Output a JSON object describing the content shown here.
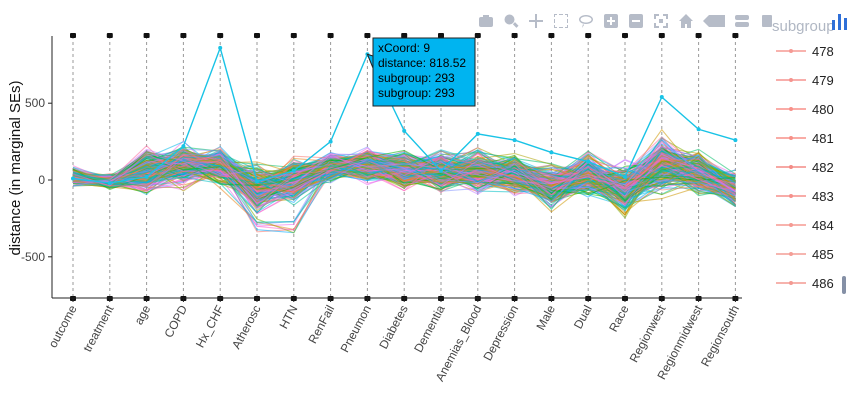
{
  "chart_data": {
    "type": "line",
    "ylabel": "distance (in marginal SEs)",
    "categories": [
      "outcome",
      "treatment",
      "age",
      "COPD",
      "Hx_CHF",
      "Atherosc",
      "HTN",
      "RenFail",
      "Pneumon",
      "Diabetes",
      "Dementia",
      "Anemias_Blood",
      "Depression",
      "Male",
      "Dual",
      "Race",
      "Regionwest",
      "Regionmidwest",
      "Regionsouth"
    ],
    "yticks": [
      -500,
      0,
      500
    ],
    "ylim": [
      -770,
      940
    ],
    "legend_title": "subgroup",
    "legend_entries": [
      "478",
      "479",
      "480",
      "481",
      "482",
      "483",
      "484",
      "485",
      "486"
    ],
    "grid": "vertical dashed at each category",
    "series_note": "hundreds of subgroup lines colored by subgroup",
    "highlighted_series": [
      {
        "name": "293",
        "values": [
          10,
          -20,
          20,
          220,
          860,
          -10,
          60,
          250,
          818.52,
          320,
          60,
          300,
          260,
          180,
          120,
          20,
          540,
          330,
          260
        ]
      }
    ],
    "profiles": {
      "mean": [
        20,
        -10,
        60,
        100,
        90,
        -60,
        0,
        80,
        100,
        60,
        60,
        60,
        40,
        -40,
        40,
        -60,
        100,
        40,
        -60
      ],
      "spread": [
        80,
        60,
        200,
        180,
        160,
        200,
        200,
        120,
        140,
        160,
        180,
        180,
        160,
        180,
        180,
        220,
        260,
        200,
        160
      ]
    },
    "tooltip": {
      "lines": [
        "xCoord: 9",
        "distance: 818.52",
        "subgroup: 293",
        "subgroup: 293"
      ],
      "anchor_category": "Pneumon",
      "anchor_value": 818.52
    },
    "palette": [
      "#f8766d",
      "#e7851e",
      "#cd9600",
      "#aba300",
      "#7cae00",
      "#0cb702",
      "#00be67",
      "#00c19a",
      "#00bfc4",
      "#00b8e7",
      "#00a9ff",
      "#8494ff",
      "#c77cff",
      "#ed68ed",
      "#ff61cc",
      "#ff68a1"
    ]
  },
  "toolbar": {
    "icons": [
      "camera-icon",
      "zoom-icon",
      "pan-icon",
      "box-select-icon",
      "lasso-icon",
      "zoom-in-icon",
      "zoom-out-icon",
      "autoscale-icon",
      "reset-axes-icon",
      "hover-closest-icon",
      "hover-compare-icon",
      "toggle-spikelines-icon",
      "plotly-logo-icon"
    ]
  }
}
